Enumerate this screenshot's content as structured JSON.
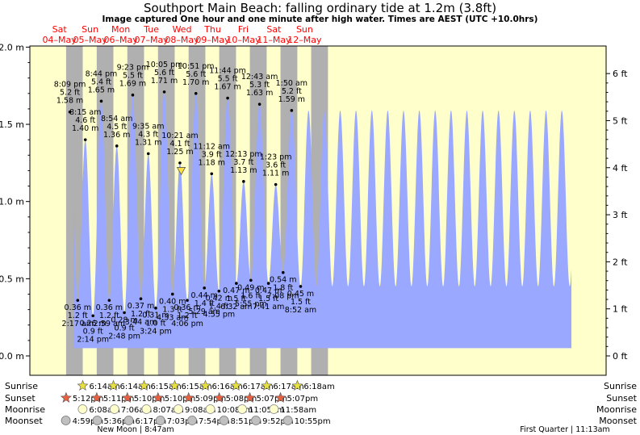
{
  "chart_data": {
    "type": "area",
    "title": "Southport Main Beach: falling  ordinary tide at 1.2m (3.8ft)",
    "subtitle": "Image captured One hour and one minute after high water. Times are AEST (UTC +10.0hrs)",
    "y_left_ticks": [
      "2.0 m",
      "1.5 m",
      "1.0 m",
      "0.5 m",
      "0.0 m"
    ],
    "y_right_ticks": [
      "6 ft",
      "5 ft",
      "4 ft",
      "3 ft",
      "2 ft",
      "1 ft",
      "0 ft"
    ],
    "ylim_m": [
      -0.14,
      2.06
    ],
    "colors": {
      "day": "#ffffcc",
      "night": "#b0b0b0",
      "tide": "#9aa8ff",
      "day_label": "#ff0000",
      "marker": "#ffe040"
    },
    "day_labels": [
      {
        "dow": "Sat",
        "date": "04–May"
      },
      {
        "dow": "Sun",
        "date": "05–May"
      },
      {
        "dow": "Mon",
        "date": "06–May"
      },
      {
        "dow": "Tue",
        "date": "07–May"
      },
      {
        "dow": "Wed",
        "date": "08–May"
      },
      {
        "dow": "Thu",
        "date": "09–May"
      },
      {
        "dow": "Fri",
        "date": "10–May"
      },
      {
        "dow": "Sat",
        "date": "11–May"
      },
      {
        "dow": "Sun",
        "date": "12–May"
      }
    ],
    "tides": [
      {
        "type": "high",
        "time": "8:09 pm",
        "ft": "5.2 ft",
        "m": 1.58,
        "label_m": "1.58 m"
      },
      {
        "type": "low",
        "time": "2:17 am",
        "ft": "1.2 ft",
        "m": 0.36,
        "label_m": "0.36 m"
      },
      {
        "type": "high",
        "time": "8:15 am",
        "ft": "4.6 ft",
        "m": 1.4,
        "label_m": "1.40 m"
      },
      {
        "type": "low",
        "time": "2:14 pm",
        "ft": "0.9 ft",
        "m": 0.26,
        "label_m": "0.26 m"
      },
      {
        "type": "high",
        "time": "8:44 pm",
        "ft": "5.4 ft",
        "m": 1.65,
        "label_m": "1.65 m"
      },
      {
        "type": "low",
        "time": "2:59 am",
        "ft": "1.2 ft",
        "m": 0.36,
        "label_m": "0.36 m"
      },
      {
        "type": "high",
        "time": "8:54 am",
        "ft": "4.5 ft",
        "m": 1.36,
        "label_m": "1.36 m"
      },
      {
        "type": "low",
        "time": "2:48 pm",
        "ft": "0.9 ft",
        "m": 0.28,
        "label_m": "0.28 m"
      },
      {
        "type": "high",
        "time": "9:23 pm",
        "ft": "5.5 ft",
        "m": 1.69,
        "label_m": "1.69 m"
      },
      {
        "type": "low",
        "time": "3:44 am",
        "ft": "1.2 ft",
        "m": 0.37,
        "label_m": "0.37 m"
      },
      {
        "type": "high",
        "time": "9:35 am",
        "ft": "4.3 ft",
        "m": 1.31,
        "label_m": "1.31 m"
      },
      {
        "type": "low",
        "time": "3:24 pm",
        "ft": "1.0 ft",
        "m": 0.31,
        "label_m": "0.31 m"
      },
      {
        "type": "high",
        "time": "10:05 pm",
        "ft": "5.6 ft",
        "m": 1.71,
        "label_m": "1.71 m"
      },
      {
        "type": "low",
        "time": "4:33 am",
        "ft": "1.3 ft",
        "m": 0.4,
        "label_m": "0.40 m"
      },
      {
        "type": "high",
        "time": "10:21 am",
        "ft": "4.1 ft",
        "m": 1.25,
        "label_m": "1.25 m"
      },
      {
        "type": "low",
        "time": "4:06 pm",
        "ft": "1.2 ft",
        "m": 0.36,
        "label_m": "0.36 m"
      },
      {
        "type": "high",
        "time": "10:51 pm",
        "ft": "5.6 ft",
        "m": 1.7,
        "label_m": "1.70 m"
      },
      {
        "type": "low",
        "time": "5:29 am",
        "ft": "1.4 ft",
        "m": 0.44,
        "label_m": "0.44 m"
      },
      {
        "type": "high",
        "time": "11:12 am",
        "ft": "3.9 ft",
        "m": 1.18,
        "label_m": "1.18 m"
      },
      {
        "type": "low",
        "time": "4:55 pm",
        "ft": "1.4 ft",
        "m": 0.42,
        "label_m": "0.42 m"
      },
      {
        "type": "high",
        "time": "11:44 pm",
        "ft": "5.5 ft",
        "m": 1.67,
        "label_m": "1.67 m"
      },
      {
        "type": "low",
        "time": "6:32 am",
        "ft": "1.5 ft",
        "m": 0.47,
        "label_m": "0.47 m"
      },
      {
        "type": "high",
        "time": "12:13 pm",
        "ft": "3.7 ft",
        "m": 1.13,
        "label_m": "1.13 m"
      },
      {
        "type": "low",
        "time": "5:55 pm",
        "ft": "1.6 ft",
        "m": 0.49,
        "label_m": "0.49 m"
      },
      {
        "type": "high",
        "time": "12:43 am",
        "ft": "5.3 ft",
        "m": 1.63,
        "label_m": "1.63 m"
      },
      {
        "type": "low",
        "time": "7:41 am",
        "ft": "1.5 ft",
        "m": 0.47,
        "label_m": "0.47 m"
      },
      {
        "type": "high",
        "time": "1:23 pm",
        "ft": "3.6 ft",
        "m": 1.11,
        "label_m": "1.11 m"
      },
      {
        "type": "low",
        "time": "7:08 pm",
        "ft": "1.8 ft",
        "m": 0.54,
        "label_m": "0.54 m"
      },
      {
        "type": "high",
        "time": "1:50 am",
        "ft": "5.2 ft",
        "m": 1.59,
        "label_m": "1.59 m"
      },
      {
        "type": "low",
        "time": "8:52 am",
        "ft": "1.5 ft",
        "m": 0.45,
        "label_m": "0.45 m"
      }
    ],
    "current": {
      "m": 1.2
    },
    "astro_row_labels": [
      "Sunrise",
      "Sunset",
      "Moonrise",
      "Moonset"
    ],
    "sunrise": [
      "6:14am",
      "6:14am",
      "6:15am",
      "6:15am",
      "6:16am",
      "6:17am",
      "6:17am",
      "6:18am"
    ],
    "sunset": [
      "5:12pm",
      "5:11pm",
      "5:10pm",
      "5:10pm",
      "5:09pm",
      "5:08pm",
      "5:07pm",
      "5:07pm"
    ],
    "moonrise": [
      "6:08am",
      "7:06am",
      "8:07am",
      "9:08am",
      "10:08am",
      "11:05am",
      "11:58am"
    ],
    "moonset": [
      "4:59pm",
      "5:36pm",
      "6:17pm",
      "7:03pm",
      "7:54pm",
      "8:51pm",
      "9:52pm",
      "10:55pm"
    ],
    "moon_phases": [
      "New Moon | 8:47am",
      "First Quarter | 11:13am"
    ]
  }
}
